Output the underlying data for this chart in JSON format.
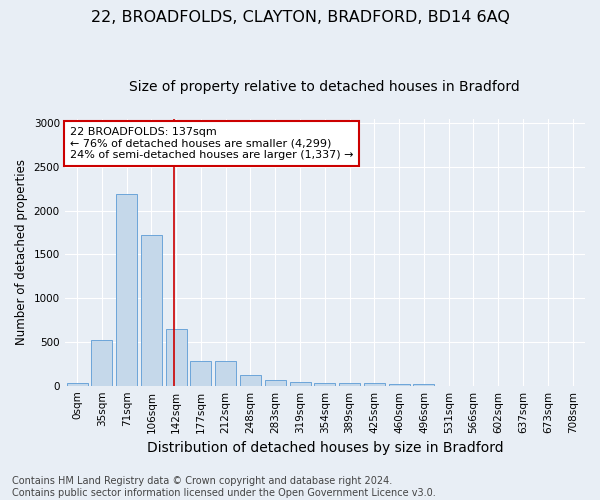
{
  "title": "22, BROADFOLDS, CLAYTON, BRADFORD, BD14 6AQ",
  "subtitle": "Size of property relative to detached houses in Bradford",
  "xlabel": "Distribution of detached houses by size in Bradford",
  "ylabel": "Number of detached properties",
  "categories": [
    "0sqm",
    "35sqm",
    "71sqm",
    "106sqm",
    "142sqm",
    "177sqm",
    "212sqm",
    "248sqm",
    "283sqm",
    "319sqm",
    "354sqm",
    "389sqm",
    "425sqm",
    "460sqm",
    "496sqm",
    "531sqm",
    "566sqm",
    "602sqm",
    "637sqm",
    "673sqm",
    "708sqm"
  ],
  "values": [
    30,
    520,
    2190,
    1720,
    650,
    285,
    285,
    125,
    65,
    40,
    30,
    25,
    25,
    20,
    20,
    0,
    0,
    0,
    0,
    0,
    0
  ],
  "bar_color": "#c5d8ea",
  "bar_edge_color": "#5b9bd5",
  "annotation_text": "22 BROADFOLDS: 137sqm\n← 76% of detached houses are smaller (4,299)\n24% of semi-detached houses are larger (1,337) →",
  "annotation_box_color": "#ffffff",
  "annotation_box_edge": "#cc0000",
  "red_line_bar_index": 4,
  "ylim": [
    0,
    3050
  ],
  "yticks": [
    0,
    500,
    1000,
    1500,
    2000,
    2500,
    3000
  ],
  "footer_line1": "Contains HM Land Registry data © Crown copyright and database right 2024.",
  "footer_line2": "Contains public sector information licensed under the Open Government Licence v3.0.",
  "bg_color": "#e8eef5",
  "plot_bg_color": "#e8eef5",
  "grid_color": "#ffffff",
  "title_fontsize": 11.5,
  "subtitle_fontsize": 10,
  "xlabel_fontsize": 10,
  "ylabel_fontsize": 8.5,
  "tick_fontsize": 7.5,
  "annot_fontsize": 8,
  "footer_fontsize": 7
}
